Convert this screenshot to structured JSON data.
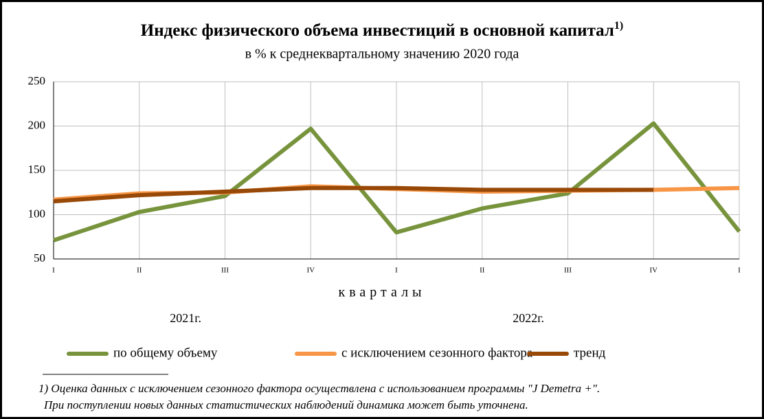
{
  "chart_data": {
    "type": "line",
    "title": "Индекс физического объема инвестиций в основной капитал",
    "title_note": "1)",
    "subtitle": "в % к среднеквартальному значению 2020 года",
    "x_label": "кварталы",
    "categories": [
      "I",
      "II",
      "III",
      "IV",
      "I",
      "II",
      "III",
      "IV",
      "I"
    ],
    "years": [
      "2021г.",
      "2022г."
    ],
    "series": [
      {
        "name": "по общему объему",
        "color": "#77933c",
        "values": [
          71,
          103,
          121,
          197,
          80,
          107,
          124,
          203,
          81
        ]
      },
      {
        "name": "с исключением сезонного фактора",
        "color": "#f79646",
        "values": [
          117,
          124,
          125,
          132,
          129,
          126,
          127,
          128,
          130
        ]
      },
      {
        "name": "тренд",
        "color": "#984807",
        "values": [
          115,
          122,
          126,
          130,
          130,
          128,
          128,
          128,
          null
        ]
      }
    ],
    "ylim": [
      50,
      250
    ],
    "yticks": [
      50,
      100,
      150,
      200,
      250
    ],
    "grid": true,
    "footnote": [
      "1) Оценка  данных с исключением сезонного фактора осуществлена с использованием программы \"J Demetra +\".",
      "При поступлении новых данных статистических наблюдений динамика может быть уточнена."
    ]
  }
}
